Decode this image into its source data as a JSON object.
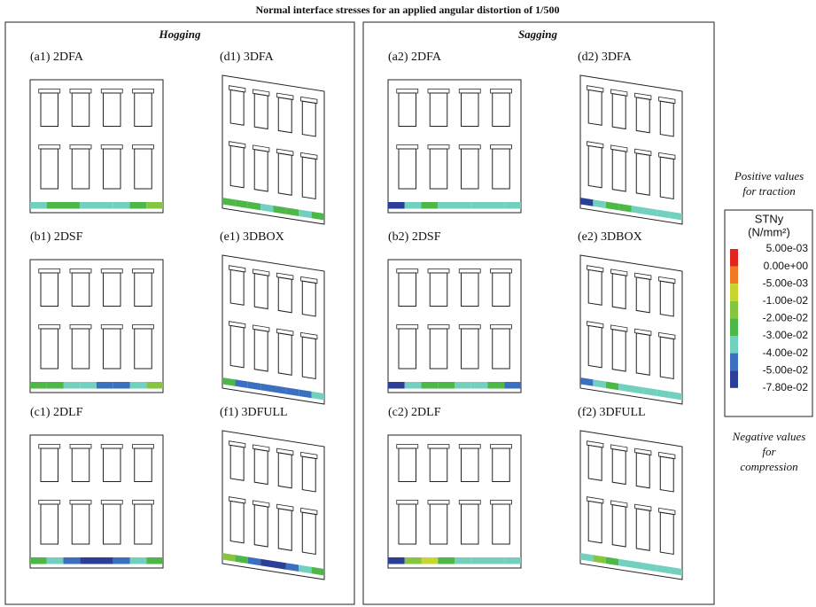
{
  "title": "Normal interface stresses for an applied angular distortion of 1/500",
  "panels": [
    {
      "title": "Hogging",
      "subfigures": [
        "(a1) 2DFA",
        "(d1) 3DFA",
        "(b1) 2DSF",
        "(e1) 3DBOX",
        "(c1) 2DLF",
        "(f1) 3DFULL"
      ]
    },
    {
      "title": "Sagging",
      "subfigures": [
        "(a2) 2DFA",
        "(d2) 3DFA",
        "(b2) 2DSF",
        "(e2) 3DBOX",
        "(c2) 2DLF",
        "(f2) 3DFULL"
      ]
    }
  ],
  "legend": {
    "note_top": [
      "Positive values",
      "for traction"
    ],
    "title": [
      "STNy",
      "(N/mm²)"
    ],
    "labels": [
      "5.00e-03",
      "0.00e+00",
      "-5.00e-03",
      "-1.00e-02",
      "-2.00e-02",
      "-3.00e-02",
      "-4.00e-02",
      "-5.00e-02",
      "-7.80e-02"
    ],
    "colors": [
      "#e2231f",
      "#f07a22",
      "#c9d52f",
      "#86c540",
      "#4db848",
      "#72d0be",
      "#3b6fbf",
      "#2b3f98"
    ],
    "note_bottom": [
      "Negative values",
      "for",
      "compression"
    ]
  }
}
